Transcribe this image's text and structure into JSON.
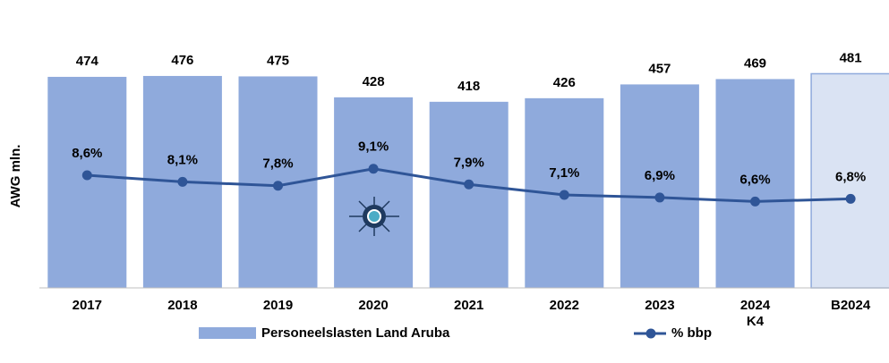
{
  "chart_data": {
    "type": "bar",
    "categories": [
      "2017",
      "2018",
      "2019",
      "2020",
      "2021",
      "2022",
      "2023",
      "2024\nK4",
      "B2024"
    ],
    "ylabel": "AWG mln.",
    "ylim": [
      0,
      500
    ],
    "y2lim": [
      0,
      17
    ],
    "series": [
      {
        "name": "Personeelslasten Land Aruba",
        "type": "bar",
        "color": "#8faadc",
        "colors": [
          "#8faadc",
          "#8faadc",
          "#8faadc",
          "#8faadc",
          "#8faadc",
          "#8faadc",
          "#8faadc",
          "#8faadc",
          "#dae3f3"
        ],
        "values": [
          474,
          476,
          475,
          428,
          418,
          426,
          457,
          469,
          481
        ]
      },
      {
        "name": "% bbp",
        "type": "line",
        "axis": "y2",
        "color": "#2f5597",
        "values": [
          8.6,
          8.1,
          7.8,
          9.1,
          7.9,
          7.1,
          6.9,
          6.6,
          6.8
        ],
        "value_labels": [
          "8,6%",
          "8,1%",
          "7,8%",
          "9,1%",
          "7,9%",
          "7,1%",
          "6,9%",
          "6,6%",
          "6,8%"
        ]
      }
    ]
  }
}
